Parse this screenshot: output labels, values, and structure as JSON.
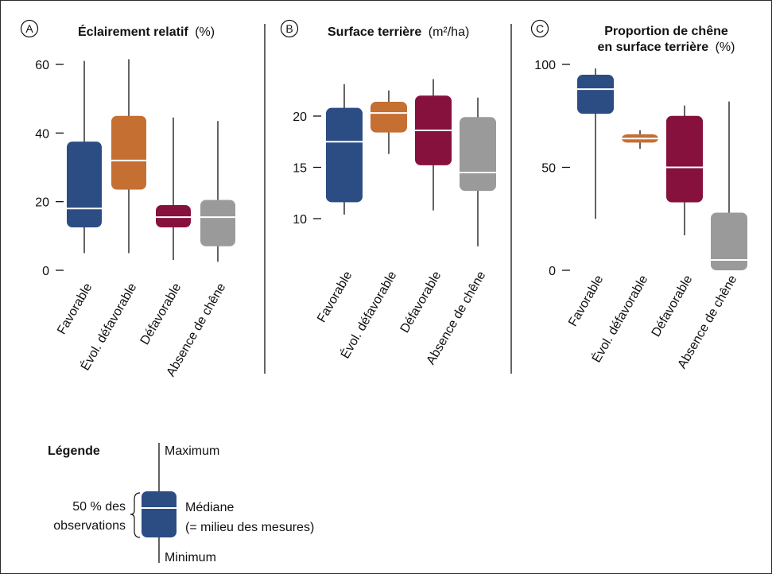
{
  "colors": {
    "favorable": "#2c4d83",
    "evol_defavorable": "#c56f33",
    "defavorable": "#86113d",
    "absence": "#9a9a9a",
    "median_line": "#ffffff",
    "axis": "#111111"
  },
  "categories": [
    "Favorable",
    "Évol. défavorable",
    "Défavorable",
    "Absence de chêne"
  ],
  "chart_data": [
    {
      "type": "box",
      "panel_letter": "A",
      "title_bold": "Éclairement relatif",
      "title_unit": "(%)",
      "categories": [
        "Favorable",
        "Évol. défavorable",
        "Défavorable",
        "Absence de chêne"
      ],
      "yticks": [
        0,
        20,
        40,
        60
      ],
      "ylim": [
        0,
        61
      ],
      "series": [
        {
          "min": 5,
          "q1": 12.5,
          "median": 18,
          "q3": 37.5,
          "max": 61
        },
        {
          "min": 5,
          "q1": 23.5,
          "median": 32,
          "q3": 45,
          "max": 61.5
        },
        {
          "min": 3,
          "q1": 12.5,
          "median": 15.5,
          "q3": 19,
          "max": 44.5
        },
        {
          "min": 2.5,
          "q1": 7,
          "median": 15.5,
          "q3": 20.5,
          "max": 43.5
        }
      ]
    },
    {
      "type": "box",
      "panel_letter": "B",
      "title_bold": "Surface terrière",
      "title_unit": "(m²/ha)",
      "categories": [
        "Favorable",
        "Évol. défavorable",
        "Défavorable",
        "Absence de chêne"
      ],
      "yticks": [
        10,
        15,
        20
      ],
      "ylim": [
        10,
        20
      ],
      "series": [
        {
          "min": 10.4,
          "q1": 11.6,
          "median": 17.5,
          "q3": 20.8,
          "max": 23.1
        },
        {
          "min": 16.3,
          "q1": 18.4,
          "median": 20.3,
          "q3": 21.4,
          "max": 22.5
        },
        {
          "min": 10.8,
          "q1": 15.2,
          "median": 18.6,
          "q3": 22.0,
          "max": 23.6
        },
        {
          "min": 7.3,
          "q1": 12.7,
          "median": 14.5,
          "q3": 19.9,
          "max": 21.8
        }
      ]
    },
    {
      "type": "box",
      "panel_letter": "C",
      "title_bold_line1": "Proportion de chêne",
      "title_bold_line2": "en surface terrière",
      "title_unit": "(%)",
      "categories": [
        "Favorable",
        "Évol. défavorable",
        "Défavorable",
        "Absence de chêne"
      ],
      "yticks": [
        0,
        50,
        100
      ],
      "ylim": [
        0,
        100
      ],
      "series": [
        {
          "min": 25,
          "q1": 76,
          "median": 88,
          "q3": 95,
          "max": 98
        },
        {
          "min": 59,
          "q1": 62,
          "median": 64,
          "q3": 66,
          "max": 68
        },
        {
          "min": 17,
          "q1": 33,
          "median": 50,
          "q3": 75,
          "max": 80
        },
        {
          "min": 0,
          "q1": 0,
          "median": 5,
          "q3": 28,
          "max": 82
        }
      ]
    }
  ],
  "legend": {
    "title": "Légende",
    "maximum": "Maximum",
    "minimum": "Minimum",
    "mediane": "Médiane",
    "mediane_note": "(= milieu des mesures)",
    "obs_line1": "50 % des",
    "obs_line2": "observations"
  }
}
